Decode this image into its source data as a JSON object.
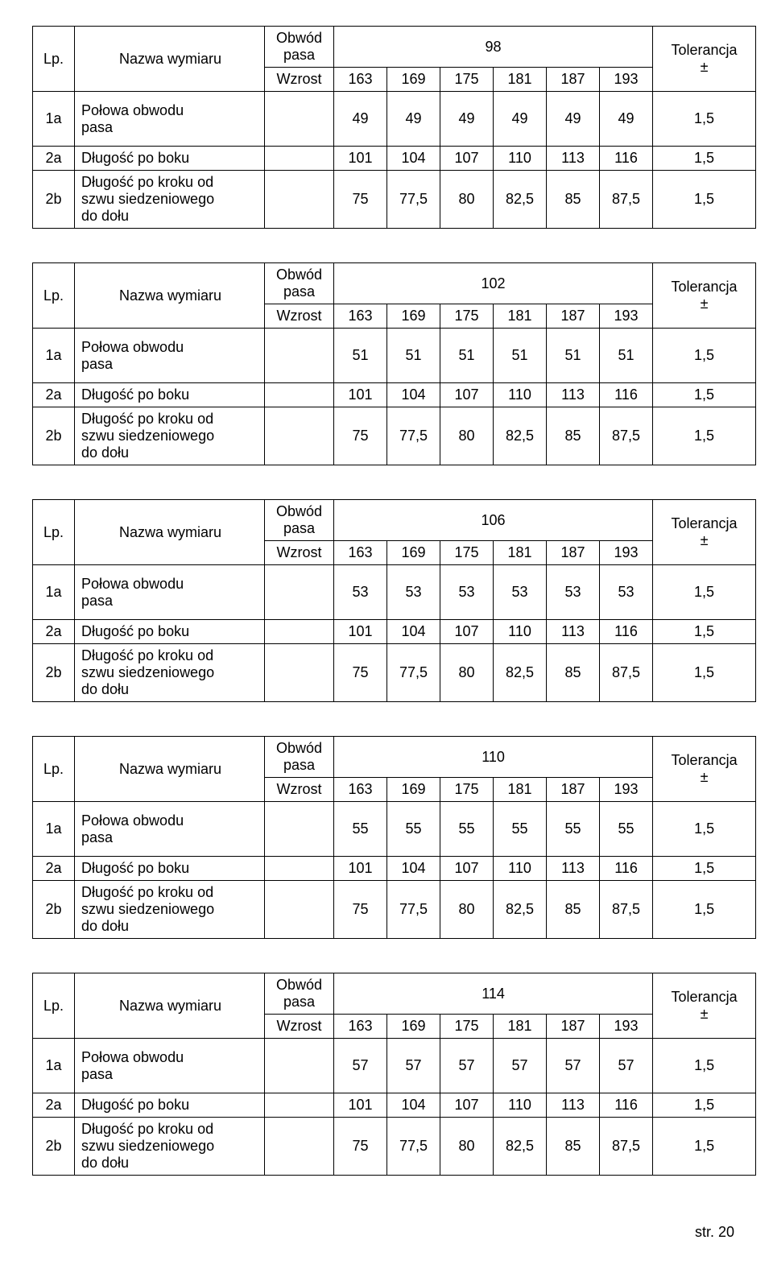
{
  "labels": {
    "lp": "Lp.",
    "nazwa": "Nazwa wymiaru",
    "obwod_pasa_l1": "Obwód",
    "obwod_pasa_l2": "pasa",
    "wzrost": "Wzrost",
    "tolerancja_l1": "Tolerancja",
    "tolerancja_l2": "±",
    "row1a_code": "1a",
    "row1a_name_l1": "Połowa obwodu",
    "row1a_name_l2": "pasa",
    "row2a_code": "2a",
    "row2a_name": "Długość po boku",
    "row2b_code": "2b",
    "row2b_name_l1": "Długość po kroku od",
    "row2b_name_l2": "szwu siedzeniowego",
    "row2b_name_l3": "do dołu"
  },
  "wzrost_values": [
    "163",
    "169",
    "175",
    "181",
    "187",
    "193"
  ],
  "row2a_values": [
    "101",
    "104",
    "107",
    "110",
    "113",
    "116"
  ],
  "row2a_tol": "1,5",
  "row2b_values": [
    "75",
    "77,5",
    "80",
    "82,5",
    "85",
    "87,5"
  ],
  "row2b_tol": "1,5",
  "row1a_tol": "1,5",
  "tables": [
    {
      "obwod": "98",
      "row1a_val": "49"
    },
    {
      "obwod": "102",
      "row1a_val": "51"
    },
    {
      "obwod": "106",
      "row1a_val": "53"
    },
    {
      "obwod": "110",
      "row1a_val": "55"
    },
    {
      "obwod": "114",
      "row1a_val": "57"
    }
  ],
  "footer": "str. 20",
  "style": {
    "background": "#ffffff",
    "text_color": "#000000",
    "border_color": "#000000",
    "font_family": "Arial",
    "base_font_size_pt": 13
  }
}
